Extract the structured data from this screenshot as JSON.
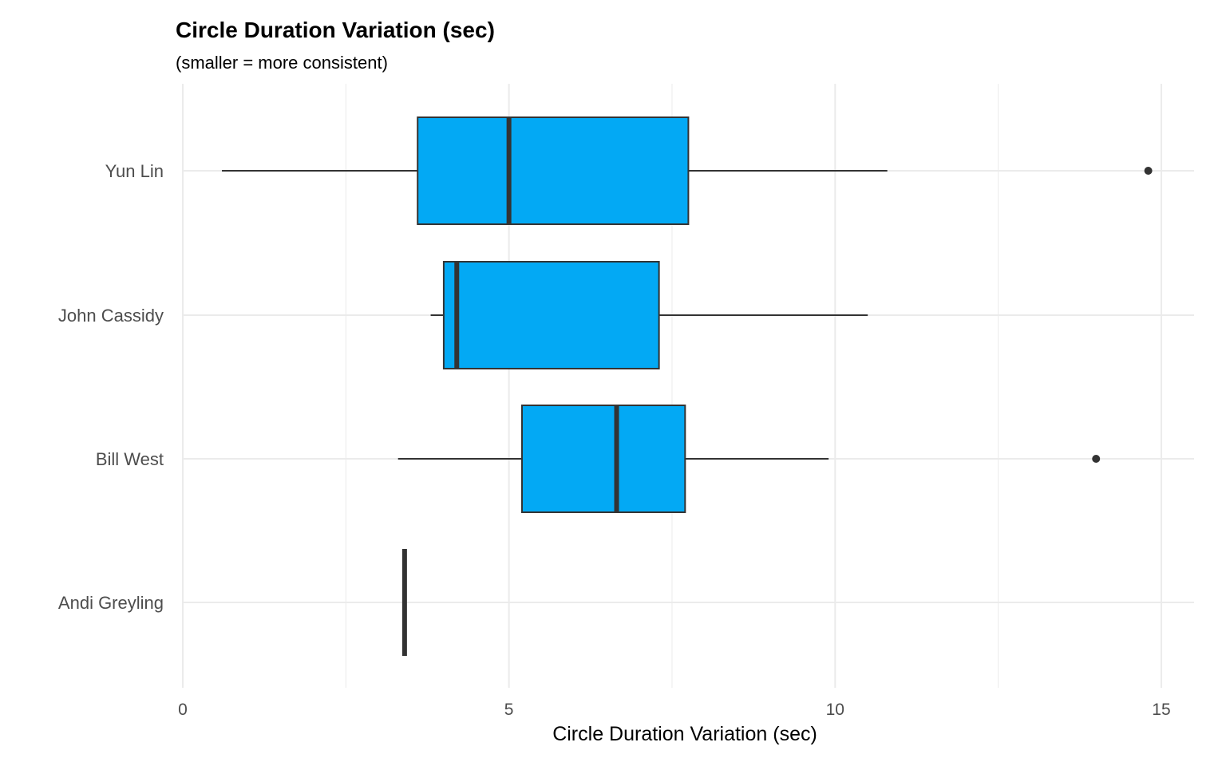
{
  "chart_data": {
    "type": "boxplot",
    "orientation": "horizontal",
    "title": "Circle Duration Variation (sec)",
    "subtitle": "(smaller = more consistent)",
    "xlabel": "Circle Duration Variation (sec)",
    "ylabel": "",
    "xlim": [
      -0.3,
      15.5
    ],
    "x_ticks": [
      0,
      5,
      10,
      15
    ],
    "grid": true,
    "colors": {
      "box_fill": "#03A9F4",
      "box_stroke": "#333333",
      "grid": "#ebebeb"
    },
    "categories": [
      "Yun Lin",
      "John Cassidy",
      "Bill West",
      "Andi Greyling"
    ],
    "boxes": [
      {
        "name": "Yun Lin",
        "min": 0.6,
        "q1": 3.6,
        "median": 5.0,
        "q3": 7.75,
        "max": 10.8,
        "outliers": [
          14.8
        ]
      },
      {
        "name": "John Cassidy",
        "min": 3.8,
        "q1": 4.0,
        "median": 4.2,
        "q3": 7.3,
        "max": 10.5,
        "outliers": []
      },
      {
        "name": "Bill West",
        "min": 3.3,
        "q1": 5.2,
        "median": 6.65,
        "q3": 7.7,
        "max": 9.9,
        "outliers": [
          14.0
        ]
      },
      {
        "name": "Andi Greyling",
        "min": 3.4,
        "q1": 3.4,
        "median": 3.4,
        "q3": 3.4,
        "max": 3.4,
        "outliers": []
      }
    ]
  }
}
